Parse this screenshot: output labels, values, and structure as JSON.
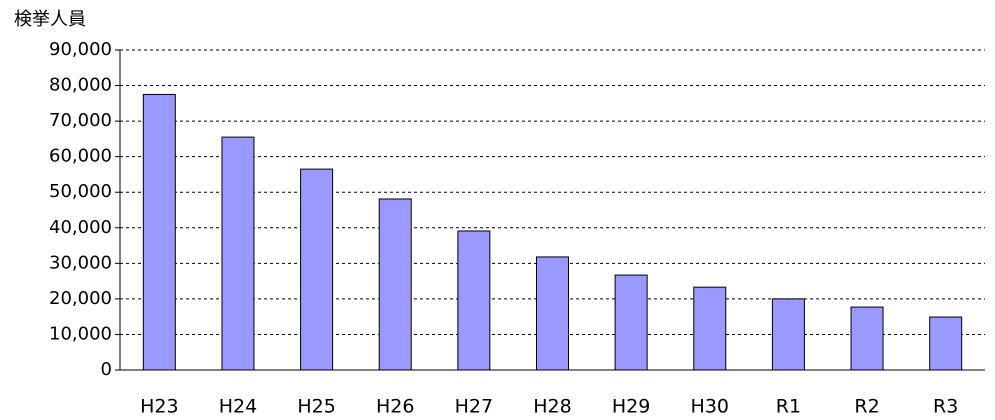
{
  "chart_data": {
    "type": "bar",
    "y_label": "検挙人員",
    "categories": [
      "H23",
      "H24",
      "H25",
      "H26",
      "H27",
      "H28",
      "H29",
      "H30",
      "R1",
      "R2",
      "R3"
    ],
    "values": [
      77500,
      65500,
      56500,
      48100,
      39100,
      31800,
      26700,
      23300,
      20000,
      17700,
      14900
    ],
    "color": "#9999ff",
    "ylim": [
      0,
      90000
    ],
    "yticks": [
      0,
      {
        "value": 10000,
        "label": "10,000"
      },
      {
        "value": 20000,
        "label": "20,000"
      },
      {
        "value": 30000,
        "label": "30,000"
      },
      {
        "value": 40000,
        "label": "40,000"
      },
      {
        "value": 50000,
        "label": "50,000"
      },
      {
        "value": 60000,
        "label": "60,000"
      },
      {
        "value": 70000,
        "label": "70,000"
      },
      {
        "value": 80000,
        "label": "80,000"
      },
      {
        "value": 90000,
        "label": "90,000"
      }
    ],
    "grid": true
  }
}
